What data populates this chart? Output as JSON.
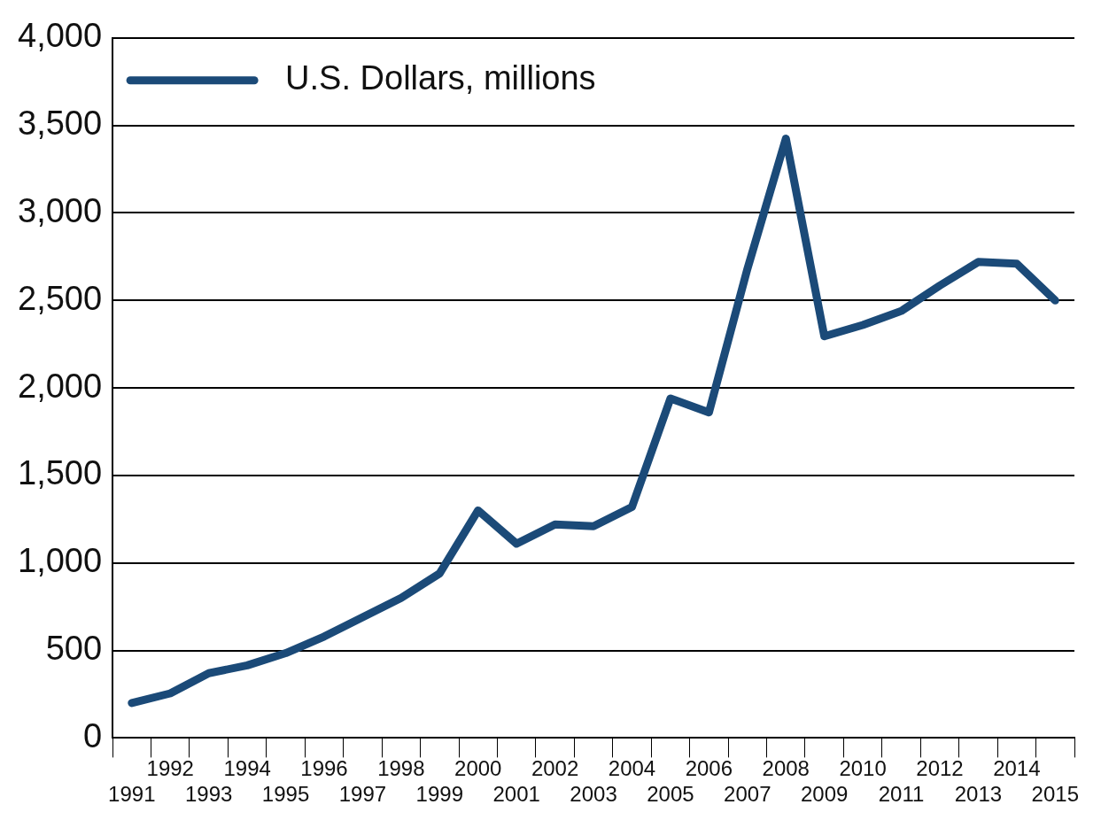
{
  "chart_data": {
    "type": "line",
    "categories": [
      "1991",
      "1992",
      "1993",
      "1994",
      "1995",
      "1996",
      "1997",
      "1998",
      "1999",
      "2000",
      "2001",
      "2002",
      "2003",
      "2004",
      "2005",
      "2006",
      "2007",
      "2008",
      "2009",
      "2010",
      "2011",
      "2012",
      "2013",
      "2014",
      "2015"
    ],
    "series": [
      {
        "name": "U.S. Dollars, millions",
        "color": "#1b4a78",
        "values": [
          200,
          255,
          370,
          415,
          485,
          580,
          690,
          800,
          940,
          1300,
          1110,
          1220,
          1210,
          1320,
          1940,
          1860,
          2680,
          3425,
          2295,
          2360,
          2440,
          2585,
          2720,
          2710,
          2500
        ]
      }
    ],
    "ylim": [
      0,
      4000
    ],
    "yticks": [
      {
        "value": 0,
        "label": "0"
      },
      {
        "value": 500,
        "label": "500"
      },
      {
        "value": 1000,
        "label": "1,000"
      },
      {
        "value": 1500,
        "label": "1,500"
      },
      {
        "value": 2000,
        "label": "2,000"
      },
      {
        "value": 2500,
        "label": "2,500"
      },
      {
        "value": 3000,
        "label": "3,000"
      },
      {
        "value": 3500,
        "label": "3,500"
      },
      {
        "value": 4000,
        "label": "4,000"
      }
    ],
    "grid": "y",
    "legend": "top left",
    "marker": "none",
    "line_style": "solid"
  }
}
